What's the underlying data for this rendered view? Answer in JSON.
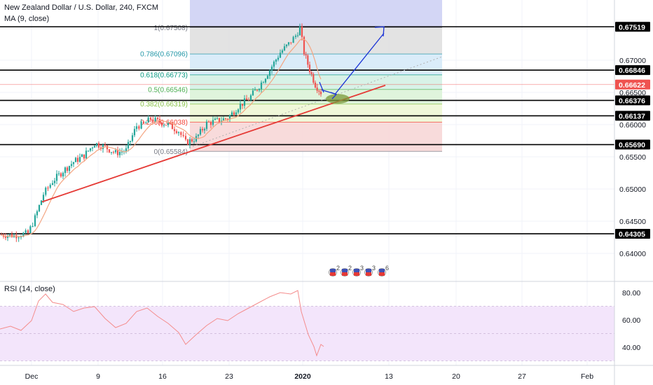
{
  "header": {
    "title": "New Zealand Dollar / U.S. Dollar, 240, FXCM",
    "ma_label": "MA (9, close)"
  },
  "rsi_panel": {
    "label": "RSI (14, close)",
    "axis_ticks": [
      "80.00",
      "60.00",
      "40.00"
    ],
    "band_top": 70,
    "band_bottom": 30
  },
  "chart_data": {
    "type": "candlestick",
    "symbol": "NZDUSD",
    "timeframe": "240",
    "price_axis": {
      "ticks": [
        "0.67000",
        "0.66500",
        "0.66000",
        "0.65500",
        "0.65000",
        "0.64500",
        "0.64000"
      ],
      "tick_values": [
        0.67,
        0.665,
        0.66,
        0.655,
        0.65,
        0.645,
        0.64
      ]
    },
    "time_axis": {
      "labels": [
        "Dec",
        "9",
        "16",
        "23",
        "2020",
        "13",
        "20",
        "27",
        "Feb"
      ]
    },
    "horizontal_levels": [
      {
        "label": "0.67519",
        "value": 0.67519,
        "color": "#000000"
      },
      {
        "label": "0.66846",
        "value": 0.66846,
        "color": "#000000"
      },
      {
        "label": "0.66376",
        "value": 0.66376,
        "color": "#000000"
      },
      {
        "label": "0.66137",
        "value": 0.66137,
        "color": "#000000"
      },
      {
        "label": "0.65690",
        "value": 0.6569,
        "color": "#000000"
      },
      {
        "label": "0.64305",
        "value": 0.64305,
        "color": "#000000"
      }
    ],
    "current_price": {
      "label": "0.66622",
      "value": 0.66622,
      "color": "#ef5350"
    },
    "fibonacci_levels": [
      {
        "label": "1(0.67508)",
        "value": 0.67508,
        "fill": "#e0e0e0",
        "text_color": "#787b86"
      },
      {
        "label": "0.786(0.67096)",
        "value": 0.67096,
        "fill": "#d6eaf8",
        "text_color": "#2196a6"
      },
      {
        "label": "0.618(0.66773)",
        "value": 0.66773,
        "fill": "#d4f1e4",
        "text_color": "#089981"
      },
      {
        "label": "0.5(0.66546)",
        "value": 0.66546,
        "fill": "#dbf3d8",
        "text_color": "#4caf50"
      },
      {
        "label": "0.382(0.66319)",
        "value": 0.66319,
        "fill": "#eef7d5",
        "text_color": "#8bc34a"
      },
      {
        "label": "0.236(0.66038)",
        "value": 0.66038,
        "fill": "#f7d7d7",
        "text_color": "#f44336"
      },
      {
        "label": "0(0.65584)",
        "value": 0.65584,
        "fill": "#f7d7d7",
        "text_color": "#787b86"
      }
    ],
    "rsi_ticks": [
      80,
      60,
      40
    ]
  },
  "colors": {
    "up": "#26a69a",
    "down": "#ef5350",
    "ma": "#f4a582",
    "trendline": "#e53935",
    "projection": "#1a33d6",
    "rsi": "#f48c8c"
  }
}
